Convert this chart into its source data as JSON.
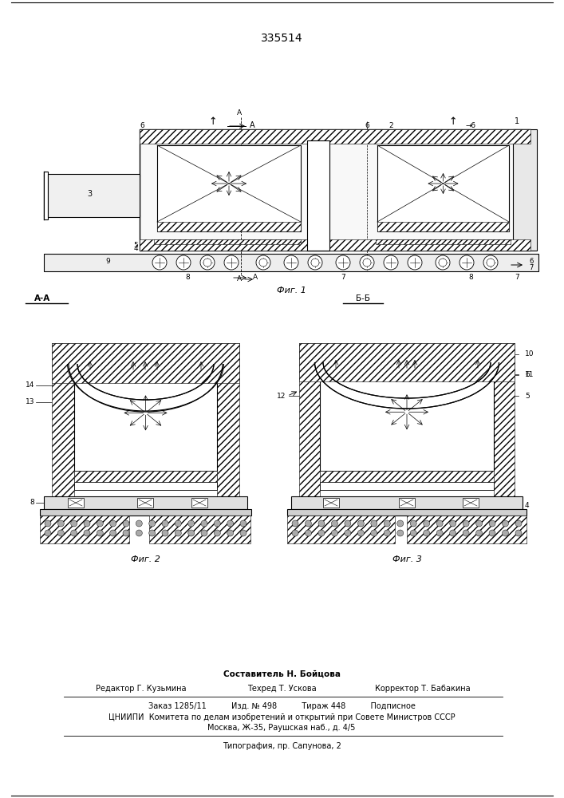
{
  "patent_number": "335514",
  "bg": "#ffffff",
  "fw": 7.07,
  "fh": 10.0,
  "dpi": 100,
  "footer": {
    "line1": "Составитель Н. Бойцова",
    "line2_left": "Редактор Г. Кузьмина",
    "line2_mid": "Техред Т. Ускова",
    "line2_right": "Корректор Т. Бабакина",
    "line3": "Заказ 1285/11          Изд. № 498          Тираж 448          Подписное",
    "line4": "ЦНИИПИ  Комитета по делам изобретений и открытий при Совете Министров СССР",
    "line5": "Москва, Ж-35, Раушская наб., д. 4/5",
    "line6": "Типография, пр. Сапунова, 2"
  }
}
